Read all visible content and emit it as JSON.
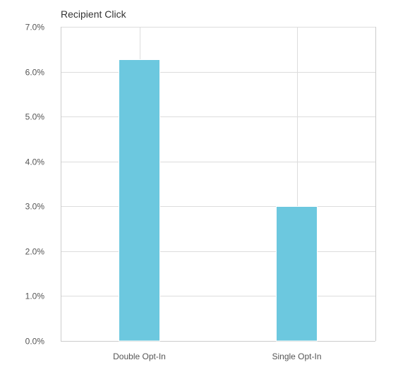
{
  "chart_data": {
    "type": "bar",
    "title": "Recipient Click",
    "xlabel": "",
    "ylabel": "",
    "categories": [
      "Double Opt-In",
      "Single Opt-In"
    ],
    "values": [
      6.27,
      3.0
    ],
    "ylim": [
      0,
      7
    ],
    "yticks": [
      0,
      1,
      2,
      3,
      4,
      5,
      6,
      7
    ],
    "ytick_labels": [
      "0.0%",
      "1.0%",
      "2.0%",
      "3.0%",
      "4.0%",
      "5.0%",
      "6.0%",
      "7.0%"
    ],
    "grid": true,
    "legend": "none",
    "colors": {
      "bar": "#6cc8df",
      "bar_edge": "#ffffff"
    }
  }
}
